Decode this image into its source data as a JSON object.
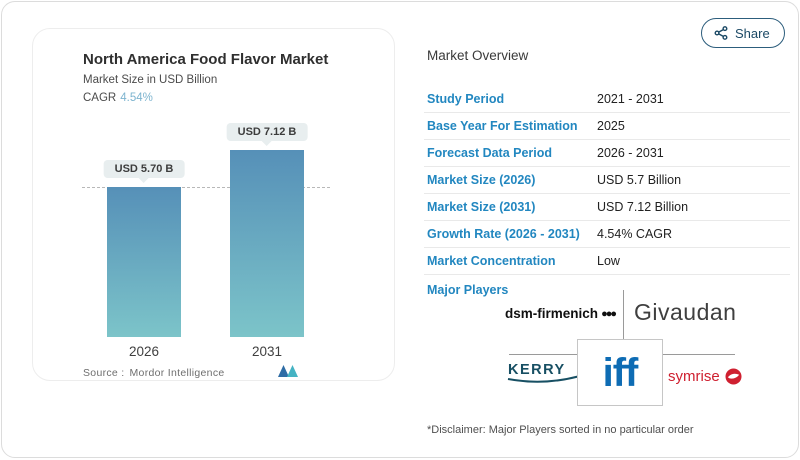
{
  "share": {
    "label": "Share"
  },
  "chart": {
    "title": "North America Food Flavor Market",
    "subtitle": "Market Size in USD Billion",
    "cagr_label": "CAGR",
    "cagr_value": "4.54%",
    "source_label": "Source :",
    "source_value": "Mordor Intelligence"
  },
  "chart_data": {
    "type": "bar",
    "categories": [
      "2026",
      "2031"
    ],
    "values": [
      5.7,
      7.12
    ],
    "bar_labels": [
      "USD 5.70 B",
      "USD 7.12 B"
    ],
    "title": "North America Food Flavor Market",
    "xlabel": "",
    "ylabel": "Market Size in USD Billion",
    "unit": "USD Billion",
    "ylim": [
      0,
      7.12
    ],
    "reference_line_at": 5.7,
    "legend": "none",
    "grid": "single dashed reference line at first bar top"
  },
  "overview": {
    "heading": "Market Overview",
    "rows": [
      {
        "label": "Study Period",
        "value": "2021 - 2031"
      },
      {
        "label": "Base Year For Estimation",
        "value": "2025"
      },
      {
        "label": "Forecast Data Period",
        "value": "2026 - 2031"
      },
      {
        "label": "Market Size (2026)",
        "value": "USD 5.7 Billion"
      },
      {
        "label": "Market Size (2031)",
        "value": "USD 7.12 Billion"
      },
      {
        "label": "Growth Rate (2026 - 2031)",
        "value": "4.54% CAGR"
      },
      {
        "label": "Market Concentration",
        "value": "Low"
      }
    ],
    "major_players_label": "Major Players",
    "disclaimer": "*Disclaimer: Major Players sorted in no particular order"
  },
  "logos": {
    "dsm": "dsm-firmenich",
    "dsm_dots": "●●●",
    "givaudan": "Givaudan",
    "kerry": "KERRY",
    "iff": "iff",
    "symrise": "symrise"
  },
  "colors": {
    "accent_blue": "#2287c0",
    "cagr_teal": "#7db4cf",
    "bar_gradient_top": "#5690b8",
    "bar_gradient_bottom": "#7cc4c9",
    "share_navy": "#1b4965",
    "iff_blue": "#0e6cb4",
    "kerry_navy": "#174f63",
    "symrise_red": "#cf2030"
  }
}
